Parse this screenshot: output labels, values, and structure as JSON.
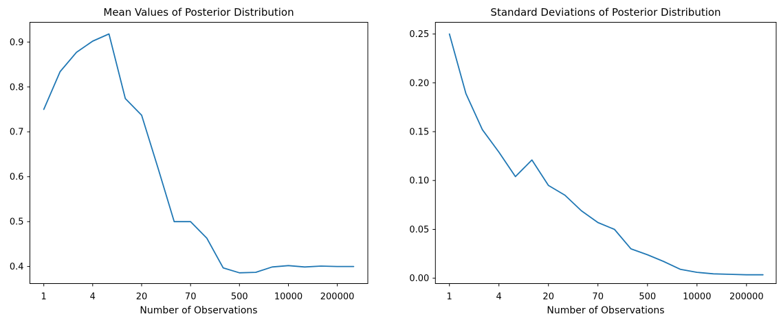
{
  "figure": {
    "background": "#ffffff",
    "text_color": "#000000",
    "axis_color": "#000000"
  },
  "chart_data": [
    {
      "type": "line",
      "title": "Mean Values of Posterior Distribution",
      "xlabel": "Number of Observations",
      "ylabel": "",
      "line_color": "#1f77b4",
      "grid": false,
      "legend": null,
      "x_note": "20 points evenly spaced on an index axis; x tick labels mark every 3rd point",
      "x": [
        0,
        1,
        2,
        3,
        4,
        5,
        6,
        7,
        8,
        9,
        10,
        11,
        12,
        13,
        14,
        15,
        16,
        17,
        18,
        19
      ],
      "values": [
        0.75,
        0.834,
        0.877,
        0.902,
        0.918,
        0.774,
        0.737,
        0.62,
        0.5,
        0.5,
        0.463,
        0.397,
        0.386,
        0.387,
        0.399,
        0.402,
        0.399,
        0.401,
        0.4,
        0.4
      ],
      "xtick_positions": [
        0,
        3,
        6,
        9,
        12,
        15,
        18
      ],
      "xtick_labels": [
        "1",
        "4",
        "20",
        "70",
        "500",
        "10000",
        "200000"
      ],
      "ytick_values": [
        0.4,
        0.5,
        0.6,
        0.7,
        0.8,
        0.9
      ],
      "ytick_labels": [
        "0.4",
        "0.5",
        "0.6",
        "0.7",
        "0.8",
        "0.9"
      ],
      "xlim": [
        -0.85,
        19.87
      ],
      "ylim": [
        0.362,
        0.944
      ]
    },
    {
      "type": "line",
      "title": "Standard Deviations of Posterior Distribution",
      "xlabel": "Number of Observations",
      "ylabel": "",
      "line_color": "#1f77b4",
      "grid": false,
      "legend": null,
      "x_note": "20 points evenly spaced on an index axis; x tick labels mark every 3rd point",
      "x": [
        0,
        1,
        2,
        3,
        4,
        5,
        6,
        7,
        8,
        9,
        10,
        11,
        12,
        13,
        14,
        15,
        16,
        17,
        18,
        19
      ],
      "values": [
        0.25,
        0.189,
        0.152,
        0.129,
        0.104,
        0.121,
        0.095,
        0.085,
        0.069,
        0.057,
        0.05,
        0.03,
        0.024,
        0.017,
        0.009,
        0.006,
        0.0045,
        0.004,
        0.0035,
        0.0035
      ],
      "xtick_positions": [
        0,
        3,
        6,
        9,
        12,
        15,
        18
      ],
      "xtick_labels": [
        "1",
        "4",
        "20",
        "70",
        "500",
        "10000",
        "200000"
      ],
      "ytick_values": [
        0.0,
        0.05,
        0.1,
        0.15,
        0.2,
        0.25
      ],
      "ytick_labels": [
        "0.00",
        "0.05",
        "0.10",
        "0.15",
        "0.20",
        "0.25"
      ],
      "xlim": [
        -0.85,
        19.8
      ],
      "ylim": [
        -0.0055,
        0.262
      ]
    }
  ]
}
